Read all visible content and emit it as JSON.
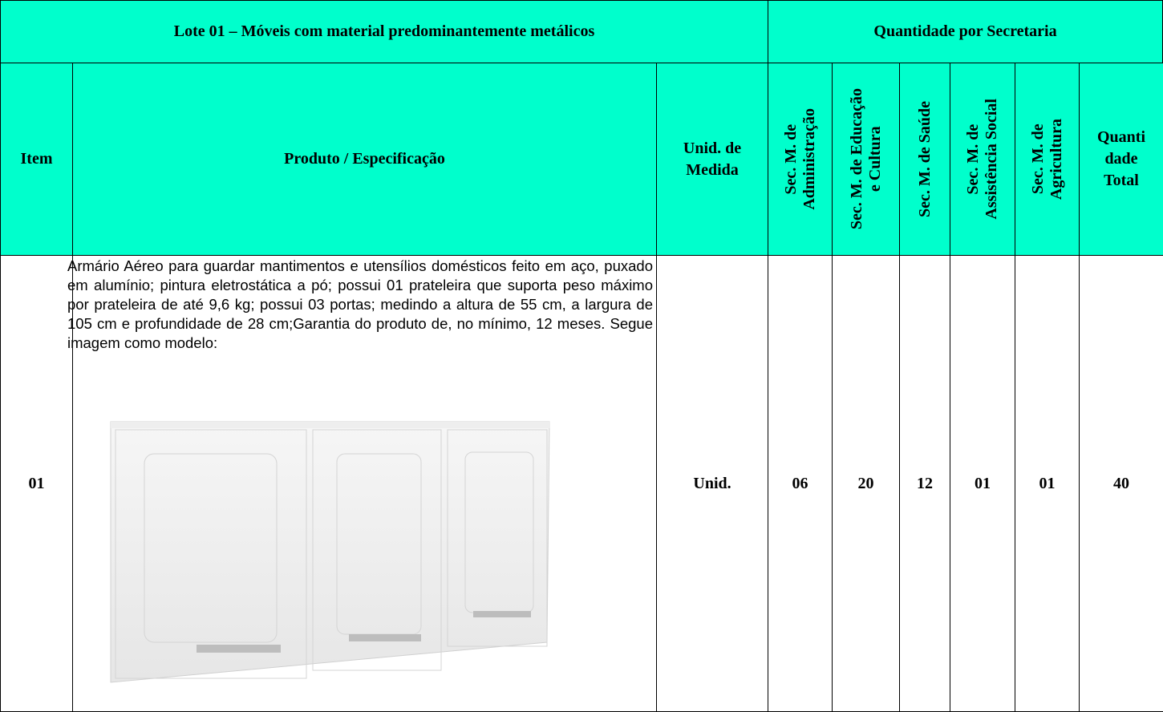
{
  "table": {
    "lote_title": "Lote 01 – Móveis com material predominantemente metálicos",
    "quantity_title": "Quantidade por Secretaria",
    "headers": {
      "item": "Item",
      "product": "Produto / Especificação",
      "unit": [
        "Unid. de",
        "Medida"
      ],
      "secretarias": [
        [
          "Sec. M. de",
          "Administração"
        ],
        [
          "Sec. M. de Educação",
          "e Cultura"
        ],
        [
          "Sec. M. de Saúde"
        ],
        [
          "Sec. M. de",
          "Assistência Social"
        ],
        [
          "Sec. M. de",
          "Agricultura"
        ]
      ],
      "total": [
        "Quanti",
        "dade",
        "Total"
      ]
    },
    "rows": [
      {
        "item": "01",
        "description": "Armário Aéreo para guardar mantimentos e utensílios domésticos feito em aço, puxado em alumínio; pintura eletrostática a pó; possui 01 prateleira que suporta peso máximo por prateleira de até 9,6 kg; possui 03 portas; medindo a altura de 55 cm, a largura de 105 cm e profundidade de 28 cm;Garantia do produto de, no mínimo, 12 meses. Segue imagem como modelo:",
        "unit": "Unid.",
        "quantities": [
          "06",
          "20",
          "12",
          "01",
          "01"
        ],
        "total": "40"
      }
    ]
  }
}
